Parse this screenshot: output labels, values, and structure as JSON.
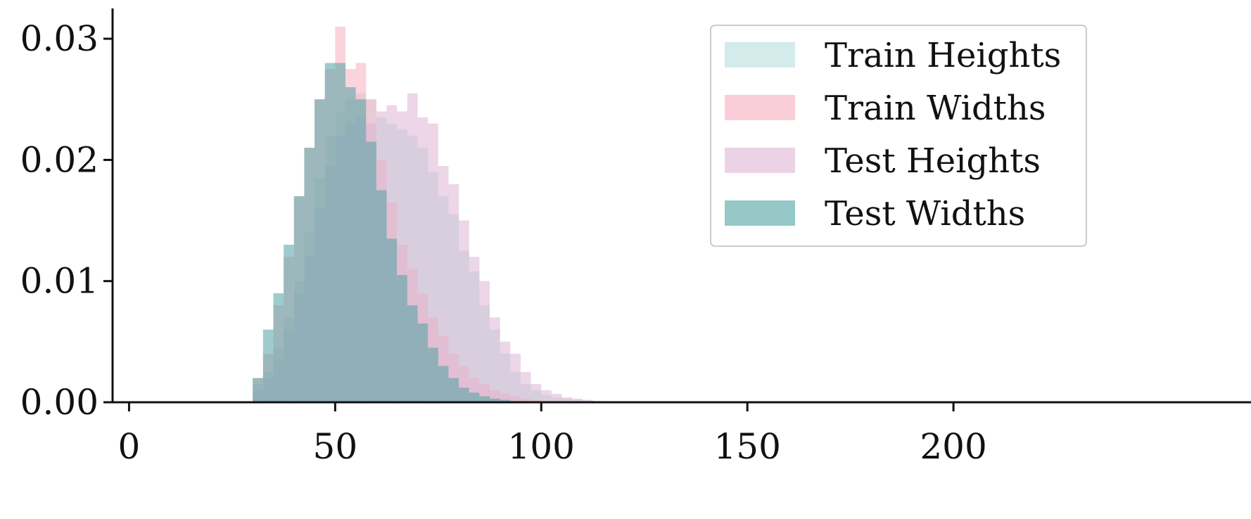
{
  "chart_data": {
    "type": "histogram",
    "title": "",
    "xlabel": "",
    "ylabel": "",
    "xlim": [
      -4,
      236
    ],
    "ylim": [
      0,
      0.0325
    ],
    "bin_width": 2.5,
    "x_ticks": [
      0,
      50,
      100,
      150,
      200
    ],
    "x_tick_labels": [
      "0",
      "50",
      "100",
      "150",
      "200"
    ],
    "y_ticks": [
      0,
      0.01,
      0.02,
      0.03
    ],
    "y_tick_labels": [
      "0.00",
      "0.01",
      "0.02",
      "0.03"
    ],
    "grid": false,
    "legend_position": "top-right",
    "series": [
      {
        "name": "Train Heights",
        "color": "#b5dedd",
        "bin_start": 30,
        "densities": [
          0.0015,
          0.0025,
          0.0045,
          0.007,
          0.01,
          0.014,
          0.0185,
          0.022,
          0.024,
          0.025,
          0.0255,
          0.025,
          0.0235,
          0.023,
          0.0225,
          0.022,
          0.021,
          0.019,
          0.017,
          0.0155,
          0.0125,
          0.0108,
          0.008,
          0.006,
          0.004,
          0.0025,
          0.0015,
          0.001,
          0.0006,
          0.0004,
          0.0003,
          0.0002,
          0.0001,
          0.0001
        ]
      },
      {
        "name": "Train Widths",
        "color": "#f7aec0",
        "bin_start": 30,
        "densities": [
          0.002,
          0.004,
          0.008,
          0.012,
          0.017,
          0.021,
          0.025,
          0.0275,
          0.031,
          0.0275,
          0.028,
          0.025,
          0.02,
          0.0165,
          0.013,
          0.011,
          0.009,
          0.007,
          0.0055,
          0.004,
          0.003,
          0.002,
          0.0015,
          0.001,
          0.0007,
          0.0005,
          0.0003,
          0.0002,
          0.0001,
          0.0001,
          0.0001,
          0.0,
          0.0,
          0.0
        ]
      },
      {
        "name": "Test Heights",
        "color": "#ddb5d3",
        "bin_start": 30,
        "densities": [
          0.001,
          0.002,
          0.0035,
          0.006,
          0.009,
          0.012,
          0.016,
          0.0195,
          0.022,
          0.023,
          0.0235,
          0.023,
          0.024,
          0.0245,
          0.024,
          0.0255,
          0.0235,
          0.023,
          0.0195,
          0.018,
          0.015,
          0.012,
          0.01,
          0.007,
          0.005,
          0.004,
          0.0025,
          0.0015,
          0.001,
          0.0007,
          0.0004,
          0.0003,
          0.0002,
          0.0001
        ]
      },
      {
        "name": "Test Widths",
        "color": "#4fa3a2",
        "bin_start": 30,
        "densities": [
          0.002,
          0.006,
          0.009,
          0.013,
          0.017,
          0.021,
          0.025,
          0.028,
          0.028,
          0.026,
          0.025,
          0.0215,
          0.0175,
          0.0135,
          0.0105,
          0.008,
          0.0065,
          0.0045,
          0.003,
          0.002,
          0.0012,
          0.0008,
          0.0005,
          0.0003,
          0.0002,
          0.0001,
          0.0001,
          0.0,
          0.0,
          0.0,
          0.0,
          0.0,
          0.0,
          0.0
        ]
      }
    ]
  }
}
